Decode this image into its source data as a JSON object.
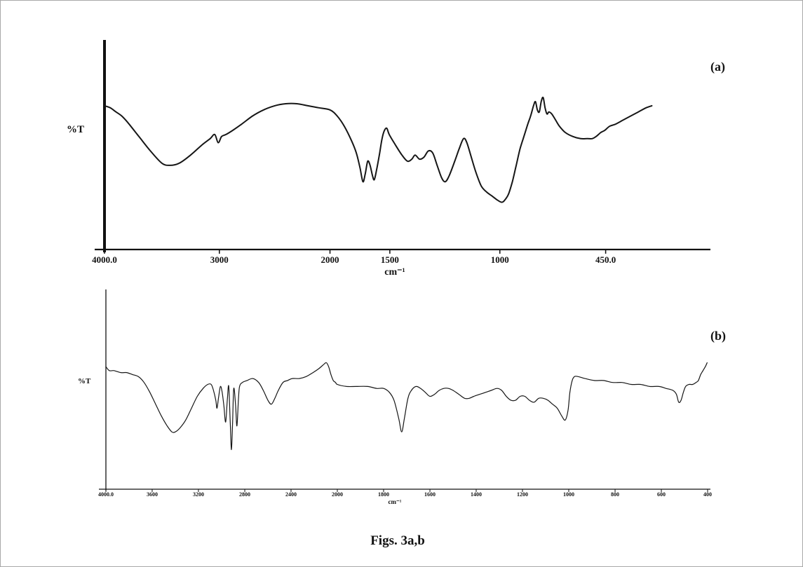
{
  "page": {
    "caption": "Figs. 3a,b"
  },
  "chart_data": [
    {
      "type": "line",
      "panel": "a",
      "panel_label": "(a)",
      "ylabel": "%T",
      "xlabel": "cm⁻¹",
      "ylim": [
        0,
        100
      ],
      "x_axis": {
        "unit": "wavenumber (cm-1)",
        "direction": "decreasing",
        "xlim": [
          4000,
          450
        ],
        "ticks": [
          {
            "label": "4000.0",
            "value": 4000,
            "pos": 0
          },
          {
            "label": "3000",
            "value": 3000,
            "pos": 0.19
          },
          {
            "label": "2000",
            "value": 2000,
            "pos": 0.373
          },
          {
            "label": "1500",
            "value": 1500,
            "pos": 0.472
          },
          {
            "label": "1000",
            "value": 1000,
            "pos": 0.654
          },
          {
            "label": "450.0",
            "value": 450,
            "pos": 0.829
          }
        ]
      },
      "trace": [
        [
          4000,
          70
        ],
        [
          3950,
          69
        ],
        [
          3900,
          67
        ],
        [
          3850,
          65
        ],
        [
          3800,
          62
        ],
        [
          3700,
          55
        ],
        [
          3600,
          48
        ],
        [
          3500,
          42
        ],
        [
          3430,
          41
        ],
        [
          3350,
          42
        ],
        [
          3250,
          46
        ],
        [
          3150,
          51
        ],
        [
          3080,
          54
        ],
        [
          3040,
          56
        ],
        [
          3010,
          52
        ],
        [
          2980,
          55
        ],
        [
          2940,
          56
        ],
        [
          2880,
          58
        ],
        [
          2800,
          61
        ],
        [
          2700,
          65
        ],
        [
          2600,
          68
        ],
        [
          2500,
          70
        ],
        [
          2400,
          71
        ],
        [
          2300,
          71
        ],
        [
          2200,
          70
        ],
        [
          2100,
          69
        ],
        [
          2000,
          68
        ],
        [
          1940,
          65
        ],
        [
          1880,
          60
        ],
        [
          1820,
          53
        ],
        [
          1780,
          47
        ],
        [
          1750,
          40
        ],
        [
          1725,
          33
        ],
        [
          1705,
          37
        ],
        [
          1685,
          43
        ],
        [
          1665,
          41
        ],
        [
          1645,
          36
        ],
        [
          1630,
          34
        ],
        [
          1610,
          39
        ],
        [
          1585,
          47
        ],
        [
          1565,
          54
        ],
        [
          1545,
          58
        ],
        [
          1525,
          59
        ],
        [
          1505,
          56
        ],
        [
          1475,
          51
        ],
        [
          1445,
          46
        ],
        [
          1420,
          43
        ],
        [
          1400,
          44
        ],
        [
          1385,
          46
        ],
        [
          1365,
          44
        ],
        [
          1345,
          45
        ],
        [
          1325,
          48
        ],
        [
          1305,
          47
        ],
        [
          1285,
          41
        ],
        [
          1265,
          35
        ],
        [
          1248,
          33
        ],
        [
          1230,
          36
        ],
        [
          1205,
          43
        ],
        [
          1185,
          49
        ],
        [
          1165,
          54
        ],
        [
          1150,
          52
        ],
        [
          1130,
          45
        ],
        [
          1110,
          38
        ],
        [
          1085,
          31
        ],
        [
          1060,
          28
        ],
        [
          1035,
          26
        ],
        [
          1010,
          24
        ],
        [
          990,
          23
        ],
        [
          975,
          24
        ],
        [
          955,
          27
        ],
        [
          935,
          33
        ],
        [
          915,
          41
        ],
        [
          895,
          49
        ],
        [
          875,
          55
        ],
        [
          855,
          61
        ],
        [
          840,
          65
        ],
        [
          825,
          70
        ],
        [
          815,
          72
        ],
        [
          805,
          68
        ],
        [
          795,
          67
        ],
        [
          785,
          72
        ],
        [
          775,
          74
        ],
        [
          765,
          69
        ],
        [
          755,
          66
        ],
        [
          745,
          67
        ],
        [
          730,
          66
        ],
        [
          710,
          63
        ],
        [
          690,
          60
        ],
        [
          660,
          57
        ],
        [
          620,
          55
        ],
        [
          580,
          54
        ],
        [
          545,
          54
        ],
        [
          520,
          54
        ],
        [
          500,
          55
        ],
        [
          475,
          57
        ],
        [
          455,
          58
        ],
        [
          430,
          60
        ],
        [
          400,
          61
        ],
        [
          360,
          63
        ],
        [
          320,
          65
        ],
        [
          280,
          67
        ],
        [
          240,
          69
        ],
        [
          210,
          70
        ]
      ]
    },
    {
      "type": "line",
      "panel": "b",
      "panel_label": "(b)",
      "ylabel": "%T",
      "xlabel": "cm⁻¹",
      "ylim": [
        0,
        100
      ],
      "x_axis": {
        "unit": "wavenumber (cm-1)",
        "direction": "decreasing",
        "xlim": [
          4000,
          400
        ],
        "ticks": [
          {
            "label": "4000.0",
            "value": 4000,
            "pos": 0
          },
          {
            "label": "3600",
            "value": 3600,
            "pos": 0.0769
          },
          {
            "label": "3200",
            "value": 3200,
            "pos": 0.1538
          },
          {
            "label": "2800",
            "value": 2800,
            "pos": 0.2308
          },
          {
            "label": "2400",
            "value": 2400,
            "pos": 0.3077
          },
          {
            "label": "2000",
            "value": 2000,
            "pos": 0.3846
          },
          {
            "label": "1800",
            "value": 1800,
            "pos": 0.4615
          },
          {
            "label": "1600",
            "value": 1600,
            "pos": 0.5385
          },
          {
            "label": "1400",
            "value": 1400,
            "pos": 0.6154
          },
          {
            "label": "1200",
            "value": 1200,
            "pos": 0.6923
          },
          {
            "label": "1000",
            "value": 1000,
            "pos": 0.7692
          },
          {
            "label": "800",
            "value": 800,
            "pos": 0.8462
          },
          {
            "label": "600",
            "value": 600,
            "pos": 0.9231
          },
          {
            "label": "400",
            "value": 400,
            "pos": 1
          }
        ]
      },
      "trace": [
        [
          4000,
          62
        ],
        [
          3970,
          60
        ],
        [
          3930,
          60
        ],
        [
          3870,
          59
        ],
        [
          3820,
          59
        ],
        [
          3770,
          58
        ],
        [
          3720,
          57
        ],
        [
          3670,
          54
        ],
        [
          3620,
          49
        ],
        [
          3570,
          43
        ],
        [
          3520,
          37
        ],
        [
          3470,
          32
        ],
        [
          3430,
          29
        ],
        [
          3400,
          29
        ],
        [
          3360,
          31
        ],
        [
          3310,
          35
        ],
        [
          3260,
          41
        ],
        [
          3210,
          47
        ],
        [
          3160,
          51
        ],
        [
          3120,
          53
        ],
        [
          3090,
          53
        ],
        [
          3070,
          50
        ],
        [
          3050,
          45
        ],
        [
          3040,
          41
        ],
        [
          3025,
          47
        ],
        [
          3010,
          52
        ],
        [
          2995,
          49
        ],
        [
          2980,
          42
        ],
        [
          2965,
          34
        ],
        [
          2950,
          46
        ],
        [
          2938,
          52
        ],
        [
          2925,
          33
        ],
        [
          2915,
          20
        ],
        [
          2905,
          34
        ],
        [
          2895,
          51
        ],
        [
          2880,
          43
        ],
        [
          2868,
          32
        ],
        [
          2855,
          45
        ],
        [
          2845,
          52
        ],
        [
          2820,
          54
        ],
        [
          2780,
          55
        ],
        [
          2730,
          56
        ],
        [
          2680,
          54
        ],
        [
          2640,
          50
        ],
        [
          2600,
          45
        ],
        [
          2570,
          43
        ],
        [
          2540,
          46
        ],
        [
          2510,
          50
        ],
        [
          2470,
          54
        ],
        [
          2430,
          55
        ],
        [
          2390,
          56
        ],
        [
          2330,
          56
        ],
        [
          2270,
          57
        ],
        [
          2210,
          59
        ],
        [
          2160,
          61
        ],
        [
          2120,
          63
        ],
        [
          2095,
          64
        ],
        [
          2075,
          62
        ],
        [
          2055,
          58
        ],
        [
          2035,
          55
        ],
        [
          2015,
          54
        ],
        [
          2000,
          53
        ],
        [
          1960,
          52
        ],
        [
          1920,
          52
        ],
        [
          1870,
          52
        ],
        [
          1830,
          51
        ],
        [
          1800,
          51
        ],
        [
          1775,
          49
        ],
        [
          1755,
          45
        ],
        [
          1735,
          36
        ],
        [
          1722,
          29
        ],
        [
          1710,
          36
        ],
        [
          1695,
          46
        ],
        [
          1680,
          50
        ],
        [
          1660,
          52
        ],
        [
          1640,
          51
        ],
        [
          1620,
          49
        ],
        [
          1600,
          47
        ],
        [
          1580,
          48
        ],
        [
          1560,
          50
        ],
        [
          1540,
          51
        ],
        [
          1520,
          51
        ],
        [
          1500,
          50
        ],
        [
          1475,
          48
        ],
        [
          1450,
          46
        ],
        [
          1430,
          46
        ],
        [
          1410,
          47
        ],
        [
          1385,
          48
        ],
        [
          1360,
          49
        ],
        [
          1335,
          50
        ],
        [
          1310,
          51
        ],
        [
          1290,
          50
        ],
        [
          1270,
          47
        ],
        [
          1250,
          45
        ],
        [
          1230,
          45
        ],
        [
          1210,
          47
        ],
        [
          1190,
          47
        ],
        [
          1170,
          45
        ],
        [
          1150,
          44
        ],
        [
          1130,
          46
        ],
        [
          1110,
          46
        ],
        [
          1090,
          45
        ],
        [
          1070,
          43
        ],
        [
          1050,
          41
        ],
        [
          1030,
          37
        ],
        [
          1015,
          35
        ],
        [
          1003,
          40
        ],
        [
          995,
          49
        ],
        [
          985,
          55
        ],
        [
          975,
          57
        ],
        [
          960,
          57
        ],
        [
          930,
          56
        ],
        [
          890,
          55
        ],
        [
          850,
          55
        ],
        [
          810,
          54
        ],
        [
          770,
          54
        ],
        [
          730,
          53
        ],
        [
          690,
          53
        ],
        [
          650,
          52
        ],
        [
          610,
          52
        ],
        [
          580,
          51
        ],
        [
          550,
          50
        ],
        [
          535,
          48
        ],
        [
          525,
          44
        ],
        [
          515,
          45
        ],
        [
          505,
          49
        ],
        [
          495,
          52
        ],
        [
          480,
          53
        ],
        [
          465,
          53
        ],
        [
          450,
          54
        ],
        [
          440,
          55
        ],
        [
          430,
          58
        ],
        [
          420,
          60
        ],
        [
          410,
          62
        ],
        [
          402,
          64
        ]
      ]
    }
  ]
}
